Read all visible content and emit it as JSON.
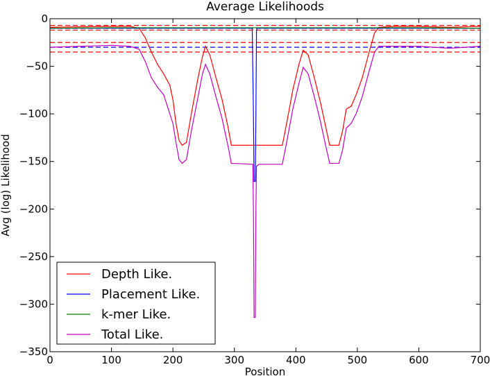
{
  "chart_data": {
    "type": "line",
    "title": "Average Likelihoods",
    "xlabel": "Position",
    "ylabel": "Avg (log) Likelihood",
    "xlim": [
      0,
      700
    ],
    "ylim": [
      -350,
      0
    ],
    "xticks": [
      0,
      100,
      200,
      300,
      400,
      500,
      600,
      700
    ],
    "yticks": [
      0,
      -50,
      -100,
      -150,
      -200,
      -250,
      -300,
      -350
    ],
    "xtick_labels": [
      "0",
      "100",
      "200",
      "300",
      "400",
      "500",
      "600",
      "700"
    ],
    "ytick_labels": [
      "0",
      "−50",
      "−100",
      "−150",
      "−200",
      "−250",
      "−300",
      "−350"
    ],
    "grid": false,
    "legend_position": "lower-left",
    "series": [
      {
        "name": "Depth Like.",
        "color": "#ff0000",
        "points": [
          [
            0,
            -9
          ],
          [
            50,
            -8.5
          ],
          [
            100,
            -8
          ],
          [
            130,
            -8
          ],
          [
            145,
            -10
          ],
          [
            155,
            -20
          ],
          [
            165,
            -35
          ],
          [
            175,
            -48
          ],
          [
            185,
            -58
          ],
          [
            195,
            -70
          ],
          [
            200,
            -85
          ],
          [
            205,
            -110
          ],
          [
            210,
            -128
          ],
          [
            215,
            -133
          ],
          [
            222,
            -130
          ],
          [
            230,
            -100
          ],
          [
            240,
            -65
          ],
          [
            248,
            -40
          ],
          [
            253,
            -29
          ],
          [
            260,
            -38
          ],
          [
            270,
            -62
          ],
          [
            280,
            -85
          ],
          [
            290,
            -115
          ],
          [
            295,
            -133
          ],
          [
            330,
            -133
          ],
          [
            340,
            -133
          ],
          [
            360,
            -133
          ],
          [
            378,
            -133
          ],
          [
            385,
            -110
          ],
          [
            395,
            -75
          ],
          [
            405,
            -48
          ],
          [
            412,
            -33
          ],
          [
            420,
            -38
          ],
          [
            430,
            -62
          ],
          [
            440,
            -88
          ],
          [
            448,
            -112
          ],
          [
            455,
            -133
          ],
          [
            470,
            -133
          ],
          [
            476,
            -118
          ],
          [
            482,
            -95
          ],
          [
            490,
            -92
          ],
          [
            498,
            -80
          ],
          [
            508,
            -62
          ],
          [
            518,
            -38
          ],
          [
            528,
            -15
          ],
          [
            535,
            -9
          ],
          [
            560,
            -8
          ],
          [
            600,
            -8
          ],
          [
            650,
            -9
          ],
          [
            700,
            -8
          ]
        ]
      },
      {
        "name": "Placement Like.",
        "color": "#0000ff",
        "points": [
          [
            0,
            -10
          ],
          [
            100,
            -10
          ],
          [
            200,
            -10
          ],
          [
            300,
            -10
          ],
          [
            329,
            -10
          ],
          [
            331,
            -100
          ],
          [
            332,
            -171
          ],
          [
            334,
            -171
          ],
          [
            335,
            -100
          ],
          [
            336,
            -12
          ],
          [
            337,
            -10
          ],
          [
            400,
            -10
          ],
          [
            500,
            -10
          ],
          [
            600,
            -10
          ],
          [
            700,
            -10
          ]
        ]
      },
      {
        "name": "k-mer Like.",
        "color": "#008000",
        "points": [
          [
            0,
            -10
          ],
          [
            100,
            -9.5
          ],
          [
            200,
            -9.5
          ],
          [
            300,
            -9.5
          ],
          [
            400,
            -9.5
          ],
          [
            500,
            -9.5
          ],
          [
            600,
            -9.5
          ],
          [
            700,
            -10
          ]
        ]
      },
      {
        "name": "Total Like.",
        "color": "#bf00bf",
        "points": [
          [
            0,
            -30
          ],
          [
            50,
            -29
          ],
          [
            100,
            -28
          ],
          [
            130,
            -29
          ],
          [
            145,
            -32
          ],
          [
            155,
            -45
          ],
          [
            165,
            -62
          ],
          [
            175,
            -72
          ],
          [
            185,
            -80
          ],
          [
            195,
            -100
          ],
          [
            200,
            -110
          ],
          [
            205,
            -130
          ],
          [
            210,
            -148
          ],
          [
            215,
            -152
          ],
          [
            222,
            -148
          ],
          [
            230,
            -118
          ],
          [
            240,
            -85
          ],
          [
            248,
            -58
          ],
          [
            253,
            -48
          ],
          [
            260,
            -58
          ],
          [
            270,
            -82
          ],
          [
            280,
            -105
          ],
          [
            290,
            -135
          ],
          [
            295,
            -152
          ],
          [
            330,
            -153
          ],
          [
            331,
            -200
          ],
          [
            332,
            -314
          ],
          [
            334,
            -314
          ],
          [
            335,
            -200
          ],
          [
            336,
            -155
          ],
          [
            340,
            -153
          ],
          [
            360,
            -153
          ],
          [
            378,
            -153
          ],
          [
            385,
            -130
          ],
          [
            395,
            -95
          ],
          [
            405,
            -68
          ],
          [
            412,
            -51
          ],
          [
            420,
            -58
          ],
          [
            430,
            -82
          ],
          [
            440,
            -108
          ],
          [
            448,
            -132
          ],
          [
            455,
            -152
          ],
          [
            470,
            -152
          ],
          [
            476,
            -138
          ],
          [
            482,
            -115
          ],
          [
            490,
            -110
          ],
          [
            498,
            -100
          ],
          [
            508,
            -82
          ],
          [
            518,
            -58
          ],
          [
            528,
            -35
          ],
          [
            535,
            -29
          ],
          [
            560,
            -29
          ],
          [
            600,
            -29
          ],
          [
            650,
            -31
          ],
          [
            700,
            -29
          ]
        ]
      }
    ],
    "reference_lines": [
      {
        "y": -7,
        "color": "#ff0000",
        "dash": true
      },
      {
        "y": -12,
        "color": "#ff0000",
        "dash": true
      },
      {
        "y": -25,
        "color": "#ff0000",
        "dash": true
      },
      {
        "y": -35,
        "color": "#ff0000",
        "dash": true
      },
      {
        "y": -10,
        "color": "#0000ff",
        "dash": true
      },
      {
        "y": -30,
        "color": "#0000ff",
        "dash": true
      }
    ]
  }
}
